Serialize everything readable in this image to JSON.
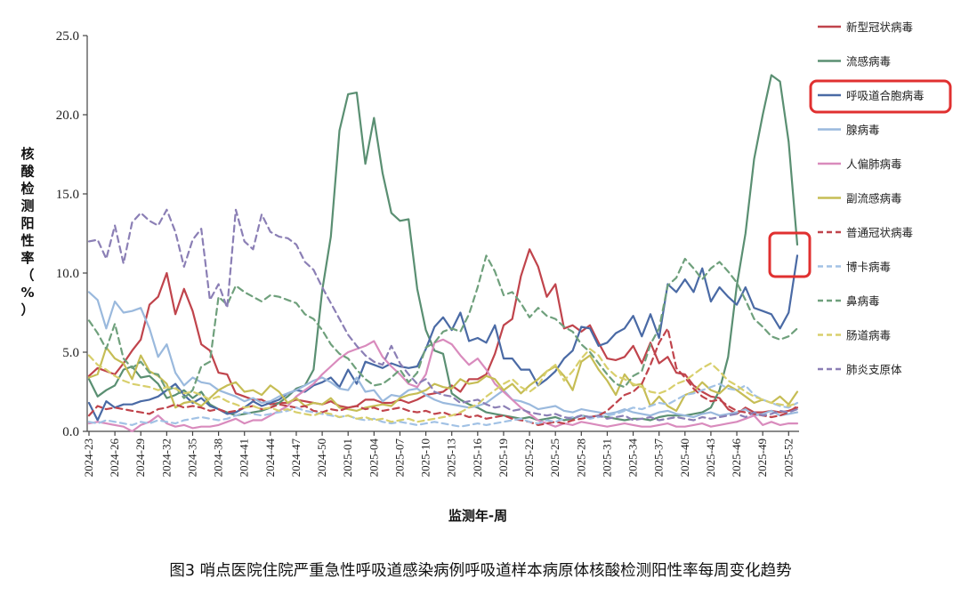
{
  "chart_data": {
    "type": "line",
    "caption": "图3 哨点医院住院严重急性呼吸道感染病例呼吸道样本病原体核酸检测阳性率每周变化趋势",
    "xlabel": "监测年-周",
    "ylabel": "核酸检测阳性率（%）",
    "ylim": [
      0,
      25
    ],
    "yticks": [
      "0.0",
      "5.0",
      "10.0",
      "15.0",
      "20.0",
      "25.0"
    ],
    "grid": false,
    "legend_position": "right",
    "x": [
      "2024-23",
      "2024-24",
      "2024-25",
      "2024-26",
      "2024-27",
      "2024-28",
      "2024-29",
      "2024-30",
      "2024-31",
      "2024-32",
      "2024-33",
      "2024-34",
      "2024-35",
      "2024-36",
      "2024-37",
      "2024-38",
      "2024-39",
      "2024-40",
      "2024-41",
      "2024-42",
      "2024-43",
      "2024-44",
      "2024-45",
      "2024-46",
      "2024-47",
      "2024-48",
      "2024-49",
      "2024-50",
      "2024-51",
      "2024-52",
      "2025-01",
      "2025-02",
      "2025-03",
      "2025-04",
      "2025-05",
      "2025-06",
      "2025-07",
      "2025-08",
      "2025-09",
      "2025-10",
      "2025-11",
      "2025-12",
      "2025-13",
      "2025-14",
      "2025-15",
      "2025-16",
      "2025-17",
      "2025-18",
      "2025-19",
      "2025-20",
      "2025-21",
      "2025-22",
      "2025-23",
      "2025-24",
      "2025-25",
      "2025-26",
      "2025-27",
      "2025-28",
      "2025-29",
      "2025-30",
      "2025-31",
      "2025-32",
      "2025-33",
      "2025-34",
      "2025-35",
      "2025-36",
      "2025-37",
      "2025-38",
      "2025-39",
      "2025-40",
      "2025-41",
      "2025-42",
      "2025-43",
      "2025-44",
      "2025-45",
      "2025-46",
      "2025-47",
      "2025-48",
      "2025-49",
      "2025-50",
      "2025-51",
      "2025-52",
      "2025-53"
    ],
    "xtick_labels": [
      "2024-23",
      "2024-26",
      "2024-29",
      "2024-32",
      "2024-35",
      "2024-38",
      "2024-41",
      "2024-44",
      "2024-47",
      "2024-50",
      "2025-01",
      "2025-04",
      "2025-07",
      "2025-10",
      "2025-13",
      "2025-16",
      "2025-19",
      "2025-22",
      "2025-25",
      "2025-28",
      "2025-31",
      "2025-34",
      "2025-37",
      "2025-40",
      "2025-43",
      "2025-46",
      "2025-49",
      "2025-52"
    ],
    "series": [
      {
        "name": "新型冠状病毒",
        "color": "#c0444c",
        "dash": "solid",
        "values": [
          3.5,
          4.0,
          3.8,
          3.6,
          4.3,
          5.1,
          5.8,
          8.0,
          8.5,
          10.0,
          7.4,
          9.0,
          7.6,
          5.5,
          5.1,
          3.7,
          3.6,
          2.4,
          2.2,
          2.0,
          2.0,
          1.7,
          1.8,
          1.8,
          2.0,
          1.9,
          1.8,
          1.7,
          1.9,
          1.6,
          1.5,
          1.6,
          2.0,
          2.0,
          1.8,
          1.8,
          2.0,
          1.8,
          2.0,
          2.3,
          2.4,
          2.5,
          2.9,
          2.5,
          3.3,
          3.3,
          3.6,
          4.9,
          6.7,
          7.1,
          9.8,
          11.5,
          10.4,
          8.5,
          9.3,
          6.5,
          6.7,
          6.3,
          6.7,
          5.6,
          4.6,
          4.5,
          4.7,
          5.4,
          4.3,
          5.6,
          4.3,
          4.7,
          3.7,
          3.6,
          2.9,
          2.5,
          2.2,
          2.1,
          1.4,
          1.1,
          1.5,
          1.2,
          1.2,
          1.3,
          1.2,
          1.3,
          1.5
        ]
      },
      {
        "name": "流感病毒",
        "color": "#5a8f72",
        "dash": "solid",
        "values": [
          3.3,
          2.2,
          2.6,
          2.9,
          3.9,
          4.1,
          3.4,
          3.5,
          3.0,
          2.1,
          2.3,
          2.6,
          2.1,
          2.5,
          1.7,
          1.4,
          1.2,
          1.0,
          1.1,
          1.2,
          1.3,
          1.5,
          1.8,
          2.2,
          2.7,
          2.9,
          3.9,
          8.9,
          12.3,
          19.0,
          21.3,
          21.4,
          16.9,
          19.8,
          16.3,
          13.8,
          13.3,
          13.4,
          9.0,
          6.4,
          5.1,
          4.9,
          2.4,
          2.0,
          1.7,
          1.5,
          1.2,
          1.1,
          1.0,
          0.9,
          0.8,
          0.9,
          0.7,
          0.8,
          0.9,
          0.7,
          0.8,
          1.0,
          0.9,
          1.0,
          0.9,
          0.8,
          0.7,
          0.8,
          0.8,
          0.7,
          0.9,
          1.0,
          1.0,
          1.0,
          1.1,
          1.2,
          1.5,
          2.6,
          4.7,
          9.2,
          12.5,
          17.2,
          20.0,
          22.5,
          22.1,
          18.3,
          11.8
        ]
      },
      {
        "name": "呼吸道合胞病毒",
        "color": "#4a6aa5",
        "dash": "solid",
        "values": [
          1.8,
          0.7,
          1.9,
          1.5,
          1.7,
          1.7,
          1.9,
          2.0,
          2.2,
          2.6,
          3.0,
          2.3,
          1.8,
          2.1,
          1.6,
          1.4,
          1.1,
          1.2,
          1.5,
          1.9,
          1.6,
          1.8,
          2.0,
          2.4,
          2.6,
          2.5,
          2.9,
          3.1,
          3.4,
          2.8,
          3.9,
          3.0,
          4.4,
          4.2,
          4.0,
          4.3,
          4.1,
          4.0,
          4.1,
          5.2,
          6.6,
          7.2,
          6.4,
          7.5,
          5.7,
          5.9,
          5.6,
          6.7,
          4.6,
          4.6,
          3.9,
          3.9,
          2.9,
          3.3,
          3.8,
          4.6,
          5.1,
          6.6,
          6.5,
          5.4,
          5.6,
          6.2,
          6.5,
          7.3,
          6.0,
          7.4,
          5.9,
          9.3,
          8.8,
          9.6,
          8.8,
          10.3,
          8.2,
          9.1,
          8.5,
          8.0,
          9.1,
          7.8,
          7.6,
          7.4,
          6.5,
          7.5,
          11.1
        ]
      },
      {
        "name": "腺病毒",
        "color": "#9ab9dd",
        "dash": "solid",
        "values": [
          8.8,
          8.3,
          6.5,
          8.2,
          7.5,
          7.6,
          7.8,
          6.5,
          4.7,
          5.5,
          3.7,
          2.9,
          3.4,
          3.1,
          3.0,
          2.6,
          2.4,
          2.2,
          1.9,
          2.1,
          1.8,
          1.9,
          2.2,
          2.4,
          2.6,
          2.9,
          3.2,
          3.4,
          3.1,
          2.7,
          2.6,
          3.4,
          2.5,
          2.6,
          1.9,
          2.3,
          2.2,
          2.6,
          2.7,
          2.3,
          2.0,
          1.8,
          1.7,
          1.6,
          1.5,
          1.6,
          1.8,
          2.2,
          2.6,
          2.0,
          1.9,
          1.7,
          1.4,
          1.5,
          1.6,
          1.3,
          1.2,
          1.4,
          1.3,
          1.2,
          1.1,
          1.2,
          1.4,
          1.2,
          1.1,
          1.0,
          1.2,
          1.3,
          1.1,
          1.0,
          0.9,
          1.1,
          1.2,
          1.0,
          1.1,
          1.2,
          1.4,
          1.0,
          1.1,
          1.3,
          1.0,
          1.1,
          1.2
        ]
      },
      {
        "name": "人偏肺病毒",
        "color": "#d98bbd",
        "dash": "solid",
        "values": [
          0.5,
          0.6,
          0.5,
          0.4,
          0.3,
          0.0,
          0.4,
          0.6,
          1.0,
          0.5,
          0.3,
          0.4,
          0.2,
          0.3,
          0.3,
          0.4,
          0.6,
          0.8,
          0.5,
          0.7,
          0.7,
          1.0,
          1.3,
          1.6,
          2.2,
          2.6,
          3.0,
          3.6,
          4.1,
          4.6,
          5.0,
          5.2,
          5.4,
          5.7,
          4.7,
          4.1,
          3.6,
          3.0,
          2.8,
          3.6,
          5.6,
          5.8,
          5.5,
          4.8,
          4.2,
          4.6,
          3.9,
          3.0,
          2.5,
          2.0,
          1.5,
          1.1,
          0.7,
          0.5,
          0.3,
          0.5,
          0.4,
          0.6,
          0.5,
          0.4,
          0.3,
          0.4,
          0.5,
          0.4,
          0.3,
          0.3,
          0.4,
          0.5,
          0.3,
          0.3,
          0.4,
          0.5,
          0.3,
          0.4,
          0.5,
          0.6,
          0.8,
          1.0,
          0.4,
          0.6,
          0.4,
          0.5,
          0.5
        ]
      },
      {
        "name": "副流感病毒",
        "color": "#c6bd55",
        "dash": "solid",
        "values": [
          3.4,
          3.6,
          5.3,
          4.6,
          4.3,
          3.3,
          4.8,
          3.8,
          3.5,
          3.0,
          1.5,
          1.8,
          1.9,
          1.6,
          2.1,
          2.6,
          2.9,
          3.1,
          2.5,
          2.6,
          2.3,
          2.9,
          2.5,
          1.8,
          2.1,
          1.6,
          1.8,
          1.7,
          2.1,
          1.5,
          1.4,
          1.3,
          1.5,
          1.6,
          1.7,
          1.6,
          2.1,
          2.3,
          2.4,
          2.6,
          3.0,
          2.8,
          2.7,
          3.3,
          3.0,
          3.1,
          3.5,
          3.3,
          2.6,
          3.0,
          2.4,
          2.9,
          3.3,
          3.8,
          4.1,
          3.5,
          2.6,
          4.4,
          4.8,
          3.9,
          3.2,
          2.3,
          3.6,
          2.9,
          3.0,
          1.6,
          2.2,
          1.6,
          1.3,
          2.3,
          2.5,
          3.1,
          2.6,
          2.4,
          2.9,
          2.6,
          2.2,
          1.8,
          2.0,
          1.8,
          2.2,
          1.7,
          2.5
        ]
      },
      {
        "name": "普通冠状病毒",
        "color": "#c0444c",
        "dash": "dashed",
        "values": [
          1.0,
          1.6,
          1.4,
          1.5,
          1.4,
          1.3,
          1.2,
          1.1,
          1.4,
          1.5,
          1.7,
          1.5,
          1.6,
          1.5,
          1.3,
          1.4,
          1.2,
          1.3,
          1.5,
          1.6,
          1.4,
          1.5,
          1.7,
          1.6,
          1.5,
          1.6,
          1.3,
          1.2,
          1.4,
          1.3,
          1.5,
          1.6,
          1.4,
          1.5,
          1.3,
          1.4,
          1.5,
          1.3,
          1.2,
          1.3,
          1.1,
          1.2,
          1.0,
          1.1,
          0.9,
          1.0,
          0.8,
          0.9,
          1.0,
          0.8,
          0.7,
          0.6,
          0.4,
          0.5,
          0.6,
          0.5,
          0.7,
          0.8,
          0.9,
          1.0,
          1.3,
          1.8,
          2.3,
          2.5,
          3.0,
          4.2,
          5.6,
          6.5,
          4.0,
          3.4,
          2.7,
          2.2,
          1.9,
          2.0,
          1.6,
          1.3,
          1.2,
          1.1,
          1.0,
          0.9,
          1.0,
          1.2,
          1.6
        ]
      },
      {
        "name": "博卡病毒",
        "color": "#a2c2e5",
        "dash": "dashed",
        "values": [
          0.6,
          0.5,
          0.7,
          0.6,
          0.5,
          0.4,
          0.6,
          0.5,
          0.7,
          0.6,
          0.5,
          0.7,
          0.8,
          0.9,
          0.8,
          0.7,
          0.8,
          1.0,
          1.2,
          1.1,
          1.0,
          1.1,
          1.2,
          1.3,
          1.5,
          1.3,
          1.2,
          1.1,
          1.0,
          0.9,
          1.0,
          0.8,
          0.7,
          0.8,
          0.6,
          0.5,
          0.6,
          0.5,
          0.4,
          0.5,
          0.6,
          0.5,
          0.4,
          0.3,
          0.4,
          0.5,
          0.4,
          0.5,
          0.6,
          0.7,
          0.8,
          0.6,
          0.5,
          0.7,
          0.6,
          0.8,
          0.9,
          1.0,
          0.8,
          0.9,
          1.0,
          1.1,
          1.3,
          1.5,
          1.4,
          1.6,
          1.8,
          1.7,
          2.0,
          2.3,
          2.4,
          2.6,
          2.8,
          3.0,
          2.7,
          2.6,
          2.9,
          2.3,
          2.0,
          1.8,
          1.6,
          1.5,
          1.8
        ]
      },
      {
        "name": "鼻病毒",
        "color": "#6fa07c",
        "dash": "dashed",
        "values": [
          7.0,
          6.2,
          5.2,
          6.8,
          4.6,
          4.0,
          4.4,
          3.7,
          3.6,
          2.6,
          2.8,
          2.1,
          2.6,
          4.1,
          4.4,
          8.5,
          8.0,
          9.2,
          8.8,
          8.5,
          8.2,
          8.6,
          8.5,
          8.3,
          8.1,
          7.4,
          7.1,
          6.4,
          5.5,
          4.9,
          4.6,
          3.9,
          3.3,
          2.9,
          3.0,
          3.4,
          3.9,
          3.1,
          3.7,
          5.3,
          5.6,
          6.3,
          6.5,
          6.3,
          7.4,
          9.1,
          11.1,
          10.1,
          8.6,
          8.8,
          8.1,
          7.2,
          7.8,
          7.3,
          7.1,
          6.6,
          6.3,
          5.5,
          5.0,
          4.3,
          3.6,
          3.0,
          2.8,
          3.5,
          3.8,
          5.5,
          6.5,
          9.2,
          9.7,
          10.9,
          10.3,
          9.6,
          10.3,
          10.7,
          10.1,
          9.4,
          8.3,
          7.1,
          6.6,
          6.0,
          5.8,
          6.0,
          6.5
        ]
      },
      {
        "name": "肠道病毒",
        "color": "#d8cf6c",
        "dash": "dashed",
        "values": [
          4.8,
          4.2,
          3.9,
          3.5,
          3.2,
          3.0,
          2.9,
          2.8,
          2.6,
          2.8,
          2.7,
          2.4,
          2.5,
          2.3,
          2.0,
          2.2,
          1.9,
          1.7,
          1.5,
          1.6,
          1.4,
          1.5,
          1.3,
          1.4,
          1.2,
          1.1,
          1.0,
          1.2,
          1.1,
          0.9,
          1.0,
          0.8,
          0.9,
          0.7,
          0.8,
          0.6,
          0.7,
          0.8,
          0.6,
          0.7,
          0.8,
          0.9,
          1.0,
          1.2,
          1.5,
          1.7,
          2.2,
          2.6,
          3.0,
          3.3,
          2.8,
          2.5,
          2.9,
          3.8,
          4.2,
          3.2,
          3.8,
          4.6,
          5.2,
          4.8,
          4.0,
          3.5,
          3.3,
          3.0,
          2.8,
          2.5,
          2.4,
          2.6,
          3.0,
          3.2,
          3.6,
          4.0,
          4.3,
          3.8,
          3.2,
          2.9,
          2.5,
          2.2,
          2.0,
          1.8,
          1.7,
          1.6,
          1.8
        ]
      },
      {
        "name": "肺炎支原体",
        "color": "#8b7fb5",
        "dash": "dashed",
        "values": [
          12.0,
          12.1,
          10.9,
          13.0,
          10.6,
          13.2,
          13.8,
          13.3,
          13.0,
          14.0,
          12.6,
          10.4,
          12.1,
          12.8,
          8.3,
          9.3,
          7.8,
          14.0,
          12.0,
          11.5,
          13.7,
          12.6,
          12.3,
          12.2,
          11.8,
          10.7,
          10.2,
          9.1,
          8.1,
          7.1,
          6.1,
          5.4,
          4.8,
          4.4,
          4.2,
          5.4,
          4.3,
          3.6,
          3.0,
          3.3,
          2.5,
          2.3,
          2.2,
          1.8,
          1.9,
          2.0,
          1.7,
          1.5,
          1.6,
          1.3,
          1.4,
          1.2,
          1.1,
          1.0,
          1.1,
          0.9,
          0.8,
          1.0,
          0.9,
          1.0,
          0.8,
          0.9,
          1.0,
          0.7,
          0.8,
          0.9,
          0.7,
          0.8,
          0.9,
          0.8,
          0.7,
          0.9,
          0.8,
          0.9,
          1.0,
          1.1,
          0.9,
          1.2,
          1.0,
          1.1,
          1.3,
          1.2,
          1.4
        ]
      }
    ]
  }
}
